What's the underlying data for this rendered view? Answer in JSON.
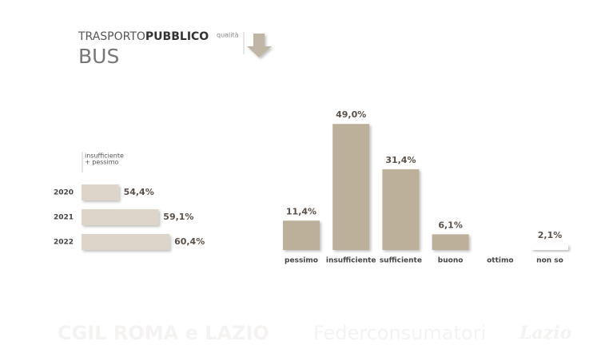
{
  "header": {
    "title_light": "TRASPORTO",
    "title_bold": "PUBBLICO",
    "qualifier": "qualità",
    "subtitle": "BUS"
  },
  "chart_data": [
    {
      "type": "hbar",
      "legend_lines": [
        "insufficiente",
        "+ pessimo"
      ],
      "categories": [
        "2020",
        "2021",
        "2022"
      ],
      "values": [
        54.4,
        59.1,
        60.4
      ],
      "value_labels": [
        "54,4%",
        "59,1%",
        "60,4%"
      ],
      "color": "#ddd5c9",
      "xlim": [
        50,
        62
      ]
    },
    {
      "type": "bar",
      "categories": [
        "pessimo",
        "insufficiente",
        "sufficiente",
        "buono",
        "ottimo",
        "non so"
      ],
      "values": [
        11.4,
        49.0,
        31.4,
        6.1,
        null,
        2.1
      ],
      "value_labels": [
        "11,4%",
        "49,0%",
        "31,4%",
        "6,1%",
        null,
        "2,1%"
      ],
      "colors": [
        "#bcb09b",
        "#bcb09b",
        "#bcb09b",
        "#bcb09b",
        "#bcb09b",
        "#ffffff"
      ],
      "ylim": [
        0,
        50
      ]
    }
  ],
  "footer": {
    "left": "CGIL ROMA e LAZIO",
    "middle": "Federconsumatori",
    "right": "Lazio"
  }
}
